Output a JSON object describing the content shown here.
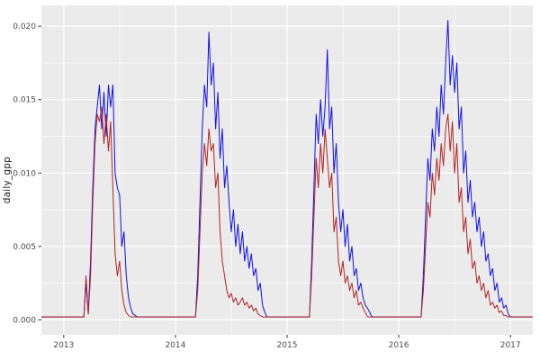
{
  "chart_data": {
    "type": "line",
    "title": "",
    "xlabel": "",
    "ylabel": "daily_gpp",
    "grid": true,
    "legend": "none",
    "panel_bg": "#EBEBEB",
    "grid_color": "#FFFFFF",
    "tick_label_color": "#4d4d4d",
    "xlim": [
      2012.8,
      2017.2
    ],
    "ylim": [
      -0.00102,
      0.02142
    ],
    "x_ticks": [
      2013,
      2014,
      2015,
      2016,
      2017
    ],
    "x_tick_labels": [
      "2013",
      "2014",
      "2015",
      "2016",
      "2017"
    ],
    "y_ticks": [
      0.0,
      0.005,
      0.01,
      0.015,
      0.02
    ],
    "y_tick_labels": [
      "0.000",
      "0.005",
      "0.010",
      "0.015",
      "0.020"
    ],
    "x_start": 2012.8,
    "x_step": 0.02,
    "x_unit": "decimal_year",
    "series": [
      {
        "name": "blue",
        "color": "#0F0FE6",
        "values": [
          0.0002,
          0.0002,
          0.0002,
          0.0002,
          0.0002,
          0.0002,
          0.0002,
          0.0002,
          0.0002,
          0.0002,
          0.0002,
          0.0002,
          0.0002,
          0.0002,
          0.0002,
          0.0002,
          0.0002,
          0.0002,
          0.0002,
          0.0002,
          0.0025,
          0.0004,
          0.004,
          0.009,
          0.013,
          0.0145,
          0.016,
          0.013,
          0.0155,
          0.0125,
          0.016,
          0.0145,
          0.016,
          0.01,
          0.009,
          0.0085,
          0.005,
          0.006,
          0.003,
          0.0015,
          0.0008,
          0.0004,
          0.0003,
          0.0002,
          0.0002,
          0.0002,
          0.0002,
          0.0002,
          0.0002,
          0.0002,
          0.0002,
          0.0002,
          0.0002,
          0.0002,
          0.0002,
          0.0002,
          0.0002,
          0.0002,
          0.0002,
          0.0002,
          0.0002,
          0.0002,
          0.0002,
          0.0002,
          0.0002,
          0.0002,
          0.0002,
          0.0002,
          0.0002,
          0.0002,
          0.003,
          0.008,
          0.013,
          0.016,
          0.0145,
          0.0196,
          0.016,
          0.0175,
          0.013,
          0.0155,
          0.011,
          0.013,
          0.009,
          0.0105,
          0.008,
          0.006,
          0.0075,
          0.005,
          0.0065,
          0.0045,
          0.006,
          0.004,
          0.005,
          0.0035,
          0.0045,
          0.003,
          0.0035,
          0.002,
          0.0025,
          0.001,
          0.0005,
          0.0002,
          0.0002,
          0.0002,
          0.0002,
          0.0002,
          0.0002,
          0.0002,
          0.0002,
          0.0002,
          0.0002,
          0.0002,
          0.0002,
          0.0002,
          0.0002,
          0.0002,
          0.0002,
          0.0002,
          0.0002,
          0.0002,
          0.0002,
          0.004,
          0.009,
          0.014,
          0.012,
          0.015,
          0.0125,
          0.0145,
          0.0184,
          0.013,
          0.0145,
          0.01,
          0.012,
          0.008,
          0.006,
          0.0075,
          0.005,
          0.0065,
          0.004,
          0.005,
          0.003,
          0.0035,
          0.002,
          0.0025,
          0.0015,
          0.001,
          0.0008,
          0.0005,
          0.0002,
          0.0002,
          0.0002,
          0.0002,
          0.0002,
          0.0002,
          0.0002,
          0.0002,
          0.0002,
          0.0002,
          0.0002,
          0.0002,
          0.0002,
          0.0002,
          0.0002,
          0.0002,
          0.0002,
          0.0002,
          0.0002,
          0.0002,
          0.0002,
          0.0002,
          0.0002,
          0.003,
          0.007,
          0.011,
          0.0095,
          0.013,
          0.0115,
          0.0145,
          0.0125,
          0.016,
          0.014,
          0.0175,
          0.0204,
          0.016,
          0.018,
          0.0155,
          0.0175,
          0.013,
          0.0145,
          0.01,
          0.0115,
          0.008,
          0.0095,
          0.007,
          0.008,
          0.006,
          0.007,
          0.005,
          0.006,
          0.004,
          0.0045,
          0.003,
          0.0035,
          0.002,
          0.0025,
          0.0012,
          0.0015,
          0.0008,
          0.001,
          0.0004,
          0.0002,
          0.0002,
          0.0002,
          0.0002,
          0.0002,
          0.0002,
          0.0002,
          0.0002,
          0.0002,
          0.0002,
          0.0002
        ]
      },
      {
        "name": "red",
        "color": "#B22222",
        "values": [
          0.0002,
          0.0002,
          0.0002,
          0.0002,
          0.0002,
          0.0002,
          0.0002,
          0.0002,
          0.0002,
          0.0002,
          0.0002,
          0.0002,
          0.0002,
          0.0002,
          0.0002,
          0.0002,
          0.0002,
          0.0002,
          0.0002,
          0.0002,
          0.003,
          0.0004,
          0.003,
          0.008,
          0.012,
          0.014,
          0.0135,
          0.0145,
          0.012,
          0.014,
          0.0115,
          0.0135,
          0.009,
          0.0045,
          0.003,
          0.004,
          0.002,
          0.001,
          0.0005,
          0.0003,
          0.0002,
          0.0002,
          0.0002,
          0.0002,
          0.0002,
          0.0002,
          0.0002,
          0.0002,
          0.0002,
          0.0002,
          0.0002,
          0.0002,
          0.0002,
          0.0002,
          0.0002,
          0.0002,
          0.0002,
          0.0002,
          0.0002,
          0.0002,
          0.0002,
          0.0002,
          0.0002,
          0.0002,
          0.0002,
          0.0002,
          0.0002,
          0.0002,
          0.0002,
          0.0002,
          0.002,
          0.006,
          0.01,
          0.012,
          0.0105,
          0.013,
          0.0115,
          0.012,
          0.009,
          0.01,
          0.006,
          0.004,
          0.003,
          0.002,
          0.0015,
          0.0018,
          0.0012,
          0.0015,
          0.001,
          0.0012,
          0.0015,
          0.001,
          0.0012,
          0.0008,
          0.001,
          0.0006,
          0.0008,
          0.0004,
          0.0003,
          0.0002,
          0.0002,
          0.0002,
          0.0002,
          0.0002,
          0.0002,
          0.0002,
          0.0002,
          0.0002,
          0.0002,
          0.0002,
          0.0002,
          0.0002,
          0.0002,
          0.0002,
          0.0002,
          0.0002,
          0.0002,
          0.0002,
          0.0002,
          0.0002,
          0.0002,
          0.003,
          0.007,
          0.011,
          0.009,
          0.012,
          0.01,
          0.013,
          0.011,
          0.009,
          0.01,
          0.006,
          0.007,
          0.004,
          0.003,
          0.004,
          0.0025,
          0.003,
          0.002,
          0.0025,
          0.0015,
          0.002,
          0.001,
          0.0012,
          0.0008,
          0.0005,
          0.0002,
          0.0002,
          0.0002,
          0.0002,
          0.0002,
          0.0002,
          0.0002,
          0.0002,
          0.0002,
          0.0002,
          0.0002,
          0.0002,
          0.0002,
          0.0002,
          0.0002,
          0.0002,
          0.0002,
          0.0002,
          0.0002,
          0.0002,
          0.0002,
          0.0002,
          0.0002,
          0.0002,
          0.0002,
          0.002,
          0.005,
          0.008,
          0.007,
          0.01,
          0.0085,
          0.011,
          0.0095,
          0.012,
          0.0105,
          0.013,
          0.014,
          0.0115,
          0.0135,
          0.01,
          0.012,
          0.008,
          0.009,
          0.006,
          0.007,
          0.0045,
          0.0055,
          0.0035,
          0.004,
          0.0025,
          0.003,
          0.002,
          0.0025,
          0.0015,
          0.002,
          0.001,
          0.0012,
          0.0008,
          0.001,
          0.0005,
          0.0006,
          0.0003,
          0.0003,
          0.0002,
          0.0002,
          0.0002,
          0.0002,
          0.0002,
          0.0002,
          0.0002,
          0.0002,
          0.0002,
          0.0002,
          0.0002,
          0.0002
        ]
      }
    ]
  }
}
